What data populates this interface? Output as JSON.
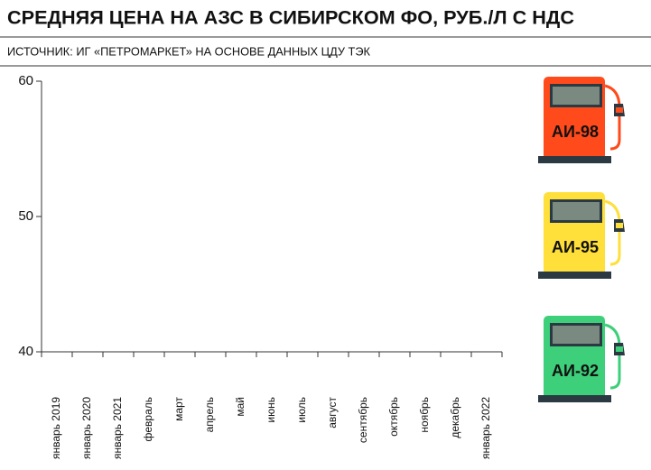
{
  "chart_data": {
    "type": "line",
    "title": "СРЕДНЯЯ ЦЕНА НА АЗС В СИБИРСКОМ ФО, РУБ./Л С НДС",
    "subtitle": "ИСТОЧНИК: ИГ «ПЕТРОМАРКЕТ» НА ОСНОВЕ ДАННЫХ ЦДУ ТЭК",
    "categories": [
      "январь 2019",
      "январь 2020",
      "январь 2021",
      "февраль",
      "март",
      "апрель",
      "май",
      "июнь",
      "июль",
      "август",
      "сентябрь",
      "октябрь",
      "ноябрь",
      "декабрь",
      "январь 2022"
    ],
    "series": [
      {
        "name": "АИ-98",
        "color": "#ff4a1c",
        "values": [
          null,
          null,
          null,
          null,
          null,
          null,
          null,
          null,
          null,
          null,
          null,
          null,
          null,
          null,
          null
        ]
      },
      {
        "name": "АИ-95",
        "color": "#ffdf3a",
        "values": [
          null,
          null,
          null,
          null,
          null,
          null,
          null,
          null,
          null,
          null,
          null,
          null,
          null,
          null,
          null
        ]
      },
      {
        "name": "АИ-92",
        "color": "#3ecf7a",
        "values": [
          null,
          null,
          null,
          null,
          null,
          null,
          null,
          null,
          null,
          null,
          null,
          null,
          null,
          null,
          null
        ]
      }
    ],
    "ylim": [
      40,
      60
    ],
    "yticks": [
      40,
      50,
      60
    ]
  }
}
